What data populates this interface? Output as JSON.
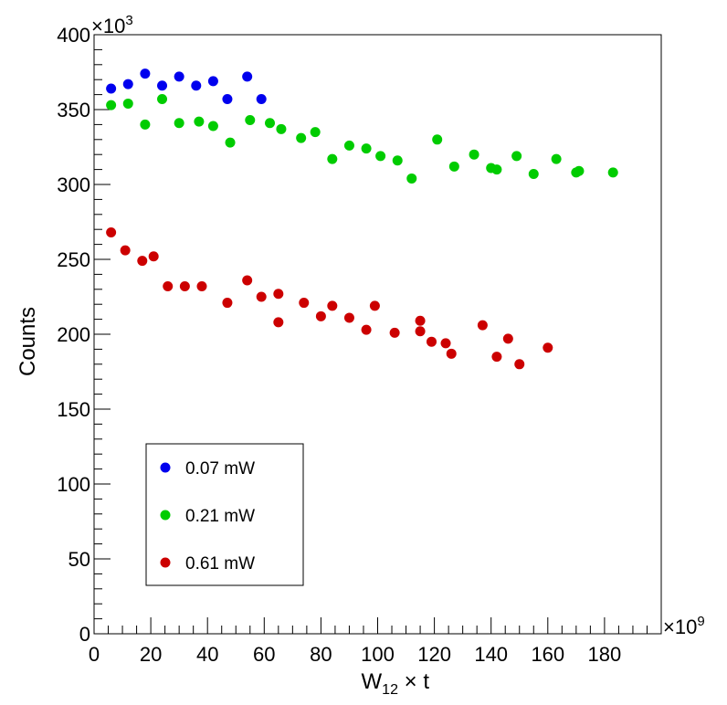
{
  "chart_data": {
    "type": "scatter",
    "title": "",
    "xlabel_main": "W",
    "xlabel_sub": "12",
    "xlabel_rest": " × t",
    "ylabel": "Counts",
    "x_multiplier_base": "×10",
    "x_multiplier_exp": "9",
    "y_multiplier_base": "×10",
    "y_multiplier_exp": "3",
    "xlim": [
      0,
      200
    ],
    "ylim": [
      0,
      400
    ],
    "x_ticks": [
      0,
      20,
      40,
      60,
      80,
      100,
      120,
      140,
      160,
      180
    ],
    "y_ticks": [
      0,
      50,
      100,
      150,
      200,
      250,
      300,
      350,
      400
    ],
    "grid": false,
    "legend_position": "bottom-left",
    "series": [
      {
        "name": "0.07 mW",
        "color": "#0000ee",
        "points": [
          [
            6,
            364
          ],
          [
            12,
            367
          ],
          [
            18,
            374
          ],
          [
            24,
            366
          ],
          [
            30,
            372
          ],
          [
            36,
            366
          ],
          [
            42,
            369
          ],
          [
            47,
            357
          ],
          [
            54,
            372
          ],
          [
            59,
            357
          ]
        ]
      },
      {
        "name": "0.21 mW",
        "color": "#00cc00",
        "points": [
          [
            6,
            353
          ],
          [
            12,
            354
          ],
          [
            18,
            340
          ],
          [
            24,
            357
          ],
          [
            30,
            341
          ],
          [
            37,
            342
          ],
          [
            42,
            339
          ],
          [
            48,
            328
          ],
          [
            55,
            343
          ],
          [
            62,
            341
          ],
          [
            66,
            337
          ],
          [
            73,
            331
          ],
          [
            78,
            335
          ],
          [
            84,
            317
          ],
          [
            90,
            326
          ],
          [
            96,
            324
          ],
          [
            101,
            319
          ],
          [
            107,
            316
          ],
          [
            112,
            304
          ],
          [
            121,
            330
          ],
          [
            127,
            312
          ],
          [
            134,
            320
          ],
          [
            140,
            311
          ],
          [
            142,
            310
          ],
          [
            149,
            319
          ],
          [
            155,
            307
          ],
          [
            163,
            317
          ],
          [
            170,
            308
          ],
          [
            171,
            309
          ],
          [
            183,
            308
          ]
        ]
      },
      {
        "name": "0.61 mW",
        "color": "#cc0000",
        "points": [
          [
            6,
            268
          ],
          [
            11,
            256
          ],
          [
            17,
            249
          ],
          [
            21,
            252
          ],
          [
            26,
            232
          ],
          [
            32,
            232
          ],
          [
            38,
            232
          ],
          [
            47,
            221
          ],
          [
            54,
            236
          ],
          [
            59,
            225
          ],
          [
            65,
            227
          ],
          [
            65,
            208
          ],
          [
            74,
            221
          ],
          [
            80,
            212
          ],
          [
            84,
            219
          ],
          [
            90,
            211
          ],
          [
            96,
            203
          ],
          [
            99,
            219
          ],
          [
            106,
            201
          ],
          [
            115,
            209
          ],
          [
            115,
            202
          ],
          [
            119,
            195
          ],
          [
            124,
            194
          ],
          [
            126,
            187
          ],
          [
            137,
            206
          ],
          [
            142,
            185
          ],
          [
            146,
            197
          ],
          [
            150,
            180
          ],
          [
            160,
            191
          ]
        ]
      }
    ]
  }
}
